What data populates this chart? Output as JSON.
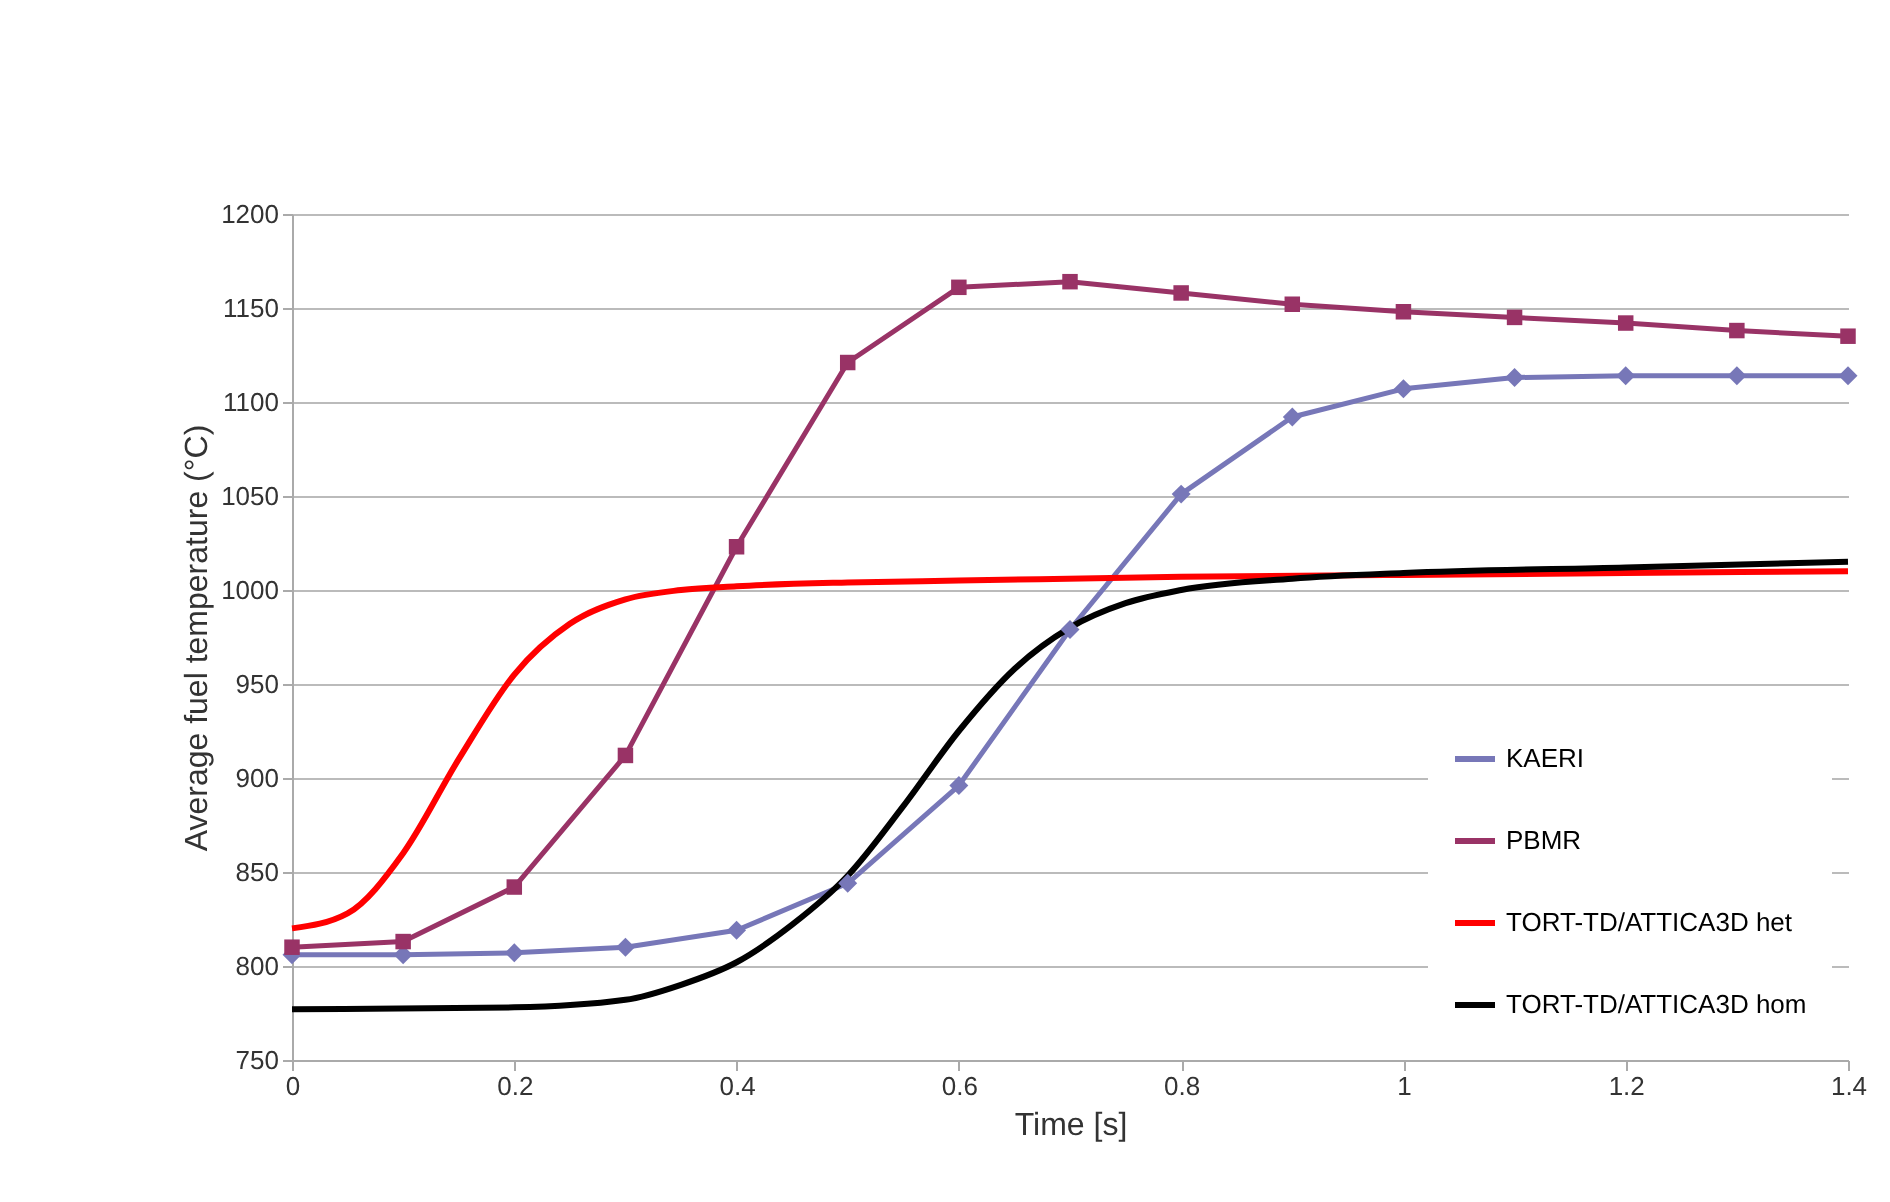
{
  "chart_data": {
    "type": "line",
    "xlabel": "Time [s]",
    "ylabel": "Average fuel temperature (°C)",
    "xlim": [
      0,
      1.4
    ],
    "xticks": [
      0,
      0.2,
      0.4,
      0.6,
      0.8,
      1,
      1.2,
      1.4
    ],
    "ylim": [
      750,
      1200
    ],
    "yticks": [
      750,
      800,
      850,
      900,
      950,
      1000,
      1050,
      1100,
      1150,
      1200
    ],
    "grid": "y",
    "legend": "bottom right",
    "line_style": "solid",
    "series": [
      {
        "name": "KAERI",
        "color": "#7777b8",
        "marker": "diamond",
        "x": [
          0,
          0.1,
          0.2,
          0.3,
          0.4,
          0.5,
          0.6,
          0.7,
          0.8,
          0.9,
          1.0,
          1.1,
          1.2,
          1.3,
          1.4
        ],
        "values": [
          806,
          806,
          807,
          810,
          819,
          844,
          896,
          979,
          1051,
          1092,
          1107,
          1113,
          1114,
          1114,
          1114
        ]
      },
      {
        "name": "PBMR",
        "color": "#993366",
        "marker": "square",
        "x": [
          0,
          0.1,
          0.2,
          0.3,
          0.4,
          0.5,
          0.6,
          0.7,
          0.8,
          0.9,
          1.0,
          1.1,
          1.2,
          1.3,
          1.4
        ],
        "values": [
          810,
          813,
          842,
          912,
          1023,
          1121,
          1161,
          1164,
          1158,
          1152,
          1148,
          1145,
          1142,
          1138,
          1135
        ]
      },
      {
        "name": "TORT-TD/ATTICA3D het",
        "color": "#ff0000",
        "marker": "none",
        "x": [
          0,
          0.05,
          0.1,
          0.15,
          0.2,
          0.25,
          0.3,
          0.35,
          0.4,
          0.5,
          0.6,
          0.8,
          1.0,
          1.2,
          1.4
        ],
        "values": [
          820,
          828,
          860,
          910,
          955,
          982,
          995,
          1000,
          1002,
          1004,
          1005,
          1007,
          1008,
          1009,
          1010
        ]
      },
      {
        "name": "TORT-TD/ATTICA3D hom",
        "color": "#000000",
        "marker": "none",
        "x": [
          0,
          0.2,
          0.3,
          0.35,
          0.4,
          0.45,
          0.5,
          0.55,
          0.6,
          0.65,
          0.7,
          0.75,
          0.8,
          0.9,
          1.0,
          1.2,
          1.4
        ],
        "values": [
          777,
          778,
          782,
          790,
          802,
          822,
          848,
          885,
          925,
          958,
          980,
          993,
          1000,
          1006,
          1009,
          1012,
          1015
        ]
      }
    ]
  }
}
